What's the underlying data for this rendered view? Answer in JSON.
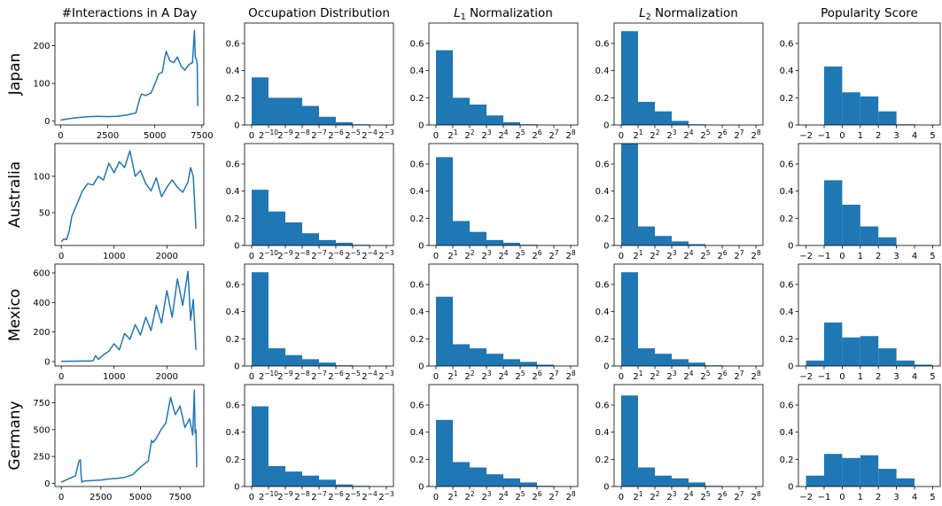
{
  "figure": {
    "bar_color": "#1f77b4",
    "line_color": "#1f77b4",
    "columns": [
      {
        "title": "#Interactions in A Day"
      },
      {
        "title": "Occupation Distribution"
      },
      {
        "title": "L1 Normalization",
        "symbol": "L",
        "subscript": "1",
        "rest": " Normalization"
      },
      {
        "title": "L2 Normalization",
        "symbol": "L",
        "subscript": "2",
        "rest": " Normalization"
      },
      {
        "title": "Popularity Score"
      }
    ],
    "rows": [
      "Japan",
      "Australia",
      "Mexico",
      "Germany"
    ]
  },
  "chart_data": [
    {
      "panel": "Japan / #Interactions in A Day",
      "type": "line",
      "x": [
        0,
        250,
        500,
        1000,
        1500,
        2000,
        2500,
        3000,
        3500,
        4000,
        4200,
        4300,
        4500,
        4800,
        5000,
        5200,
        5400,
        5500,
        5600,
        5800,
        6000,
        6200,
        6400,
        6600,
        6800,
        7000,
        7100,
        7150,
        7200,
        7250,
        7280
      ],
      "y": [
        3,
        5,
        7,
        10,
        12,
        13,
        12,
        13,
        16,
        22,
        60,
        72,
        68,
        75,
        98,
        125,
        130,
        160,
        185,
        160,
        155,
        170,
        145,
        135,
        150,
        155,
        240,
        170,
        165,
        150,
        40
      ],
      "xlim": [
        -300,
        7600
      ],
      "ylim": [
        -10,
        260
      ],
      "xticks": [
        0,
        2500,
        5000,
        7500
      ],
      "yticks": [
        0,
        100,
        200
      ]
    },
    {
      "panel": "Japan / Occupation Distribution",
      "type": "bar",
      "bin_edges": [
        0,
        1,
        2,
        3,
        4,
        5,
        6,
        7,
        8
      ],
      "values": [
        0.35,
        0.2,
        0.2,
        0.14,
        0.06,
        0.02,
        0.005,
        0.0
      ],
      "ylim": [
        0,
        0.75
      ],
      "yticks": [
        0.0,
        0.2,
        0.4,
        0.6
      ]
    },
    {
      "panel": "Japan / L1 Normalization",
      "type": "bar",
      "bin_edges": [
        0,
        1,
        2,
        3,
        4,
        5,
        6,
        7,
        8
      ],
      "values": [
        0.55,
        0.2,
        0.15,
        0.07,
        0.02,
        0.005,
        0.0,
        0.0
      ],
      "ylim": [
        0,
        0.75
      ],
      "yticks": [
        0.0,
        0.2,
        0.4,
        0.6
      ]
    },
    {
      "panel": "Japan / L2 Normalization",
      "type": "bar",
      "bin_edges": [
        0,
        1,
        2,
        3,
        4,
        5,
        6,
        7,
        8
      ],
      "values": [
        0.69,
        0.17,
        0.1,
        0.03,
        0.005,
        0.0,
        0.0,
        0.0
      ],
      "ylim": [
        0,
        0.75
      ],
      "yticks": [
        0.0,
        0.2,
        0.4,
        0.6
      ]
    },
    {
      "panel": "Japan / Popularity Score",
      "type": "bar",
      "bin_edges": [
        -2,
        -1,
        0,
        1,
        2,
        3,
        4,
        5
      ],
      "values": [
        0.0,
        0.43,
        0.24,
        0.21,
        0.1,
        0.005,
        0.0
      ],
      "ylim": [
        0,
        0.75
      ],
      "yticks": [
        0.0,
        0.2,
        0.4,
        0.6
      ]
    },
    {
      "panel": "Australia / #Interactions in A Day",
      "type": "line",
      "x": [
        0,
        50,
        100,
        150,
        200,
        300,
        400,
        500,
        600,
        700,
        800,
        900,
        1000,
        1100,
        1200,
        1300,
        1400,
        1500,
        1600,
        1700,
        1800,
        1900,
        2000,
        2100,
        2200,
        2300,
        2400,
        2450,
        2500,
        2550
      ],
      "y": [
        10,
        14,
        13,
        25,
        45,
        62,
        80,
        90,
        88,
        100,
        95,
        118,
        105,
        120,
        112,
        135,
        100,
        108,
        90,
        80,
        98,
        72,
        85,
        95,
        85,
        78,
        92,
        112,
        100,
        28
      ],
      "xlim": [
        -120,
        2700
      ],
      "ylim": [
        5,
        145
      ],
      "xticks": [
        0,
        1000,
        2000
      ],
      "yticks": [
        50,
        100
      ]
    },
    {
      "panel": "Australia / Occupation Distribution",
      "type": "bar",
      "bin_edges": [
        0,
        1,
        2,
        3,
        4,
        5,
        6,
        7,
        8
      ],
      "values": [
        0.41,
        0.25,
        0.17,
        0.09,
        0.04,
        0.02,
        0.005,
        0.0
      ],
      "ylim": [
        0,
        0.75
      ],
      "yticks": [
        0.0,
        0.2,
        0.4,
        0.6
      ]
    },
    {
      "panel": "Australia / L1 Normalization",
      "type": "bar",
      "bin_edges": [
        0,
        1,
        2,
        3,
        4,
        5,
        6,
        7,
        8
      ],
      "values": [
        0.65,
        0.18,
        0.1,
        0.04,
        0.02,
        0.005,
        0.0,
        0.0
      ],
      "ylim": [
        0,
        0.75
      ],
      "yticks": [
        0.0,
        0.2,
        0.4,
        0.6
      ]
    },
    {
      "panel": "Australia / L2 Normalization",
      "type": "bar",
      "bin_edges": [
        0,
        1,
        2,
        3,
        4,
        5,
        6,
        7,
        8
      ],
      "values": [
        0.75,
        0.14,
        0.07,
        0.03,
        0.01,
        0.0,
        0.0,
        0.0
      ],
      "ylim": [
        0,
        0.75
      ],
      "yticks": [
        0.0,
        0.2,
        0.4,
        0.6
      ]
    },
    {
      "panel": "Australia / Popularity Score",
      "type": "bar",
      "bin_edges": [
        -2,
        -1,
        0,
        1,
        2,
        3,
        4,
        5
      ],
      "values": [
        0.0,
        0.48,
        0.3,
        0.14,
        0.06,
        0.0,
        0.0
      ],
      "ylim": [
        0,
        0.75
      ],
      "yticks": [
        0.0,
        0.2,
        0.4,
        0.6
      ]
    },
    {
      "panel": "Mexico / #Interactions in A Day",
      "type": "line",
      "x": [
        0,
        300,
        600,
        650,
        700,
        800,
        900,
        1000,
        1100,
        1200,
        1300,
        1400,
        1500,
        1600,
        1700,
        1800,
        1900,
        2000,
        2100,
        2200,
        2300,
        2400,
        2450,
        2500,
        2550
      ],
      "y": [
        2,
        3,
        5,
        40,
        15,
        45,
        70,
        120,
        80,
        190,
        150,
        250,
        180,
        300,
        210,
        380,
        260,
        480,
        300,
        560,
        380,
        610,
        280,
        420,
        80
      ],
      "xlim": [
        -120,
        2700
      ],
      "ylim": [
        -30,
        660
      ],
      "xticks": [
        0,
        1000,
        2000
      ],
      "yticks": [
        0,
        200,
        400,
        600
      ]
    },
    {
      "panel": "Mexico / Occupation Distribution",
      "type": "bar",
      "bin_edges": [
        0,
        1,
        2,
        3,
        4,
        5,
        6,
        7,
        8
      ],
      "values": [
        0.69,
        0.13,
        0.08,
        0.05,
        0.025,
        0.005,
        0.0,
        0.0
      ],
      "ylim": [
        0,
        0.75
      ],
      "yticks": [
        0.0,
        0.2,
        0.4,
        0.6
      ]
    },
    {
      "panel": "Mexico / L1 Normalization",
      "type": "bar",
      "bin_edges": [
        0,
        1,
        2,
        3,
        4,
        5,
        6,
        7,
        8
      ],
      "values": [
        0.51,
        0.16,
        0.13,
        0.09,
        0.05,
        0.03,
        0.01,
        0.0
      ],
      "ylim": [
        0,
        0.75
      ],
      "yticks": [
        0.0,
        0.2,
        0.4,
        0.6
      ]
    },
    {
      "panel": "Mexico / L2 Normalization",
      "type": "bar",
      "bin_edges": [
        0,
        1,
        2,
        3,
        4,
        5,
        6,
        7,
        8
      ],
      "values": [
        0.69,
        0.13,
        0.09,
        0.05,
        0.025,
        0.005,
        0.0,
        0.0
      ],
      "ylim": [
        0,
        0.75
      ],
      "yticks": [
        0.0,
        0.2,
        0.4,
        0.6
      ]
    },
    {
      "panel": "Mexico / Popularity Score",
      "type": "bar",
      "bin_edges": [
        -2,
        -1,
        0,
        1,
        2,
        3,
        4,
        5
      ],
      "values": [
        0.04,
        0.32,
        0.21,
        0.22,
        0.13,
        0.04,
        0.01
      ],
      "ylim": [
        0,
        0.75
      ],
      "yticks": [
        0.0,
        0.2,
        0.4,
        0.6
      ]
    },
    {
      "panel": "Germany / #Interactions in A Day",
      "type": "line",
      "x": [
        0,
        300,
        600,
        900,
        1100,
        1200,
        1250,
        1300,
        1400,
        2000,
        2500,
        3000,
        3500,
        4000,
        4500,
        5000,
        5500,
        5700,
        5800,
        6000,
        6300,
        6600,
        6900,
        7200,
        7500,
        7800,
        8100,
        8300,
        8400,
        8450,
        8500,
        8550
      ],
      "y": [
        10,
        30,
        50,
        70,
        200,
        220,
        80,
        10,
        20,
        25,
        30,
        40,
        45,
        55,
        80,
        150,
        210,
        400,
        380,
        420,
        500,
        560,
        800,
        640,
        720,
        520,
        600,
        450,
        870,
        470,
        500,
        150
      ],
      "xlim": [
        -400,
        9000
      ],
      "ylim": [
        -30,
        920
      ],
      "xticks": [
        0,
        2500,
        5000,
        7500
      ],
      "yticks": [
        0,
        250,
        500,
        750
      ]
    },
    {
      "panel": "Germany / Occupation Distribution",
      "type": "bar",
      "bin_edges": [
        0,
        1,
        2,
        3,
        4,
        5,
        6,
        7,
        8
      ],
      "values": [
        0.59,
        0.15,
        0.11,
        0.08,
        0.05,
        0.015,
        0.005,
        0.0
      ],
      "ylim": [
        0,
        0.75
      ],
      "yticks": [
        0.0,
        0.2,
        0.4,
        0.6
      ]
    },
    {
      "panel": "Germany / L1 Normalization",
      "type": "bar",
      "bin_edges": [
        0,
        1,
        2,
        3,
        4,
        5,
        6,
        7,
        8
      ],
      "values": [
        0.49,
        0.18,
        0.14,
        0.09,
        0.06,
        0.03,
        0.005,
        0.0
      ],
      "ylim": [
        0,
        0.75
      ],
      "yticks": [
        0.0,
        0.2,
        0.4,
        0.6
      ]
    },
    {
      "panel": "Germany / L2 Normalization",
      "type": "bar",
      "bin_edges": [
        0,
        1,
        2,
        3,
        4,
        5,
        6,
        7,
        8
      ],
      "values": [
        0.67,
        0.14,
        0.08,
        0.06,
        0.03,
        0.005,
        0.0,
        0.0
      ],
      "ylim": [
        0,
        0.75
      ],
      "yticks": [
        0.0,
        0.2,
        0.4,
        0.6
      ]
    },
    {
      "panel": "Germany / Popularity Score",
      "type": "bar",
      "bin_edges": [
        -2,
        -1,
        0,
        1,
        2,
        3,
        4,
        5
      ],
      "values": [
        0.08,
        0.24,
        0.21,
        0.23,
        0.13,
        0.06,
        0.0
      ],
      "ylim": [
        0,
        0.75
      ],
      "yticks": [
        0.0,
        0.2,
        0.4,
        0.6
      ]
    }
  ]
}
